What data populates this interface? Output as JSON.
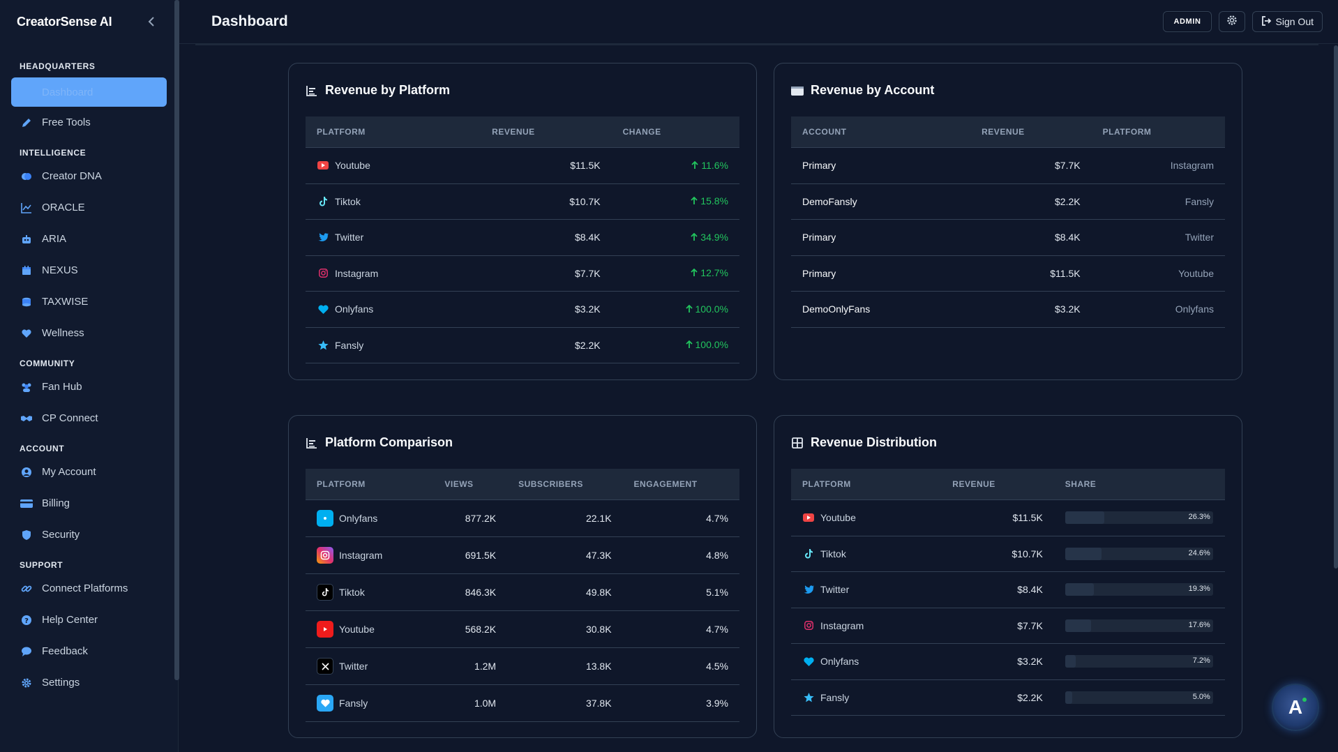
{
  "app": {
    "brand": "CreatorSense AI"
  },
  "header": {
    "title": "Dashboard",
    "admin_label": "ADMIN",
    "signout_label": "Sign Out"
  },
  "sidebar": {
    "sections": [
      {
        "label": "HEADQUARTERS"
      },
      {
        "label": "INTELLIGENCE"
      },
      {
        "label": "COMMUNITY"
      },
      {
        "label": "ACCOUNT"
      },
      {
        "label": "SUPPORT"
      }
    ],
    "active_item": "Dashboard",
    "items": [
      {
        "label": "Free Tools",
        "icon": "pencil-icon"
      },
      {
        "label": "Creator DNA",
        "icon": "brain-icon"
      },
      {
        "label": "ORACLE",
        "icon": "chart-line-icon"
      },
      {
        "label": "ARIA",
        "icon": "robot-icon"
      },
      {
        "label": "NEXUS",
        "icon": "calendar-icon"
      },
      {
        "label": "TAXWISE",
        "icon": "coins-icon"
      },
      {
        "label": "Wellness",
        "icon": "heart-icon"
      },
      {
        "label": "Fan Hub",
        "icon": "users-icon"
      },
      {
        "label": "CP Connect",
        "icon": "handshake-icon"
      },
      {
        "label": "My Account",
        "icon": "user-circle-icon"
      },
      {
        "label": "Billing",
        "icon": "credit-card-icon"
      },
      {
        "label": "Security",
        "icon": "shield-icon"
      },
      {
        "label": "Connect Platforms",
        "icon": "link-icon"
      },
      {
        "label": "Help Center",
        "icon": "question-icon"
      },
      {
        "label": "Feedback",
        "icon": "comment-icon"
      },
      {
        "label": "Settings",
        "icon": "gear-icon"
      }
    ]
  },
  "revenue_by_platform": {
    "title": "Revenue by Platform",
    "headers": [
      "PLATFORM",
      "REVENUE",
      "CHANGE"
    ],
    "rows": [
      {
        "platform": "Youtube",
        "revenue": "$11.5K",
        "change": "11.6%"
      },
      {
        "platform": "Tiktok",
        "revenue": "$10.7K",
        "change": "15.8%"
      },
      {
        "platform": "Twitter",
        "revenue": "$8.4K",
        "change": "34.9%"
      },
      {
        "platform": "Instagram",
        "revenue": "$7.7K",
        "change": "12.7%"
      },
      {
        "platform": "Onlyfans",
        "revenue": "$3.2K",
        "change": "100.0%"
      },
      {
        "platform": "Fansly",
        "revenue": "$2.2K",
        "change": "100.0%"
      }
    ]
  },
  "revenue_by_account": {
    "title": "Revenue by Account",
    "headers": [
      "ACCOUNT",
      "REVENUE",
      "PLATFORM"
    ],
    "rows": [
      {
        "account": "Primary",
        "revenue": "$7.7K",
        "platform": "Instagram"
      },
      {
        "account": "DemoFansly",
        "revenue": "$2.2K",
        "platform": "Fansly"
      },
      {
        "account": "Primary",
        "revenue": "$8.4K",
        "platform": "Twitter"
      },
      {
        "account": "Primary",
        "revenue": "$11.5K",
        "platform": "Youtube"
      },
      {
        "account": "DemoOnlyFans",
        "revenue": "$3.2K",
        "platform": "Onlyfans"
      }
    ]
  },
  "platform_comparison": {
    "title": "Platform Comparison",
    "headers": [
      "PLATFORM",
      "VIEWS",
      "SUBSCRIBERS",
      "ENGAGEMENT"
    ],
    "rows": [
      {
        "platform": "Onlyfans",
        "views": "877.2K",
        "subscribers": "22.1K",
        "engagement": "4.7%"
      },
      {
        "platform": "Instagram",
        "views": "691.5K",
        "subscribers": "47.3K",
        "engagement": "4.8%"
      },
      {
        "platform": "Tiktok",
        "views": "846.3K",
        "subscribers": "49.8K",
        "engagement": "5.1%"
      },
      {
        "platform": "Youtube",
        "views": "568.2K",
        "subscribers": "30.8K",
        "engagement": "4.7%"
      },
      {
        "platform": "Twitter",
        "views": "1.2M",
        "subscribers": "13.8K",
        "engagement": "4.5%"
      },
      {
        "platform": "Fansly",
        "views": "1.0M",
        "subscribers": "37.8K",
        "engagement": "3.9%"
      }
    ]
  },
  "revenue_distribution": {
    "title": "Revenue Distribution",
    "headers": [
      "PLATFORM",
      "REVENUE",
      "SHARE"
    ],
    "rows": [
      {
        "platform": "Youtube",
        "revenue": "$11.5K",
        "share": "26.3%",
        "share_value": 26.3
      },
      {
        "platform": "Tiktok",
        "revenue": "$10.7K",
        "share": "24.6%",
        "share_value": 24.6
      },
      {
        "platform": "Twitter",
        "revenue": "$8.4K",
        "share": "19.3%",
        "share_value": 19.3
      },
      {
        "platform": "Instagram",
        "revenue": "$7.7K",
        "share": "17.6%",
        "share_value": 17.6
      },
      {
        "platform": "Onlyfans",
        "revenue": "$3.2K",
        "share": "7.2%",
        "share_value": 7.2
      },
      {
        "platform": "Fansly",
        "revenue": "$2.2K",
        "share": "5.0%",
        "share_value": 5.0
      }
    ]
  },
  "colors": {
    "accent": "#60a5fa",
    "positive": "#22c55e",
    "youtube": "#ef4444",
    "tiktok": "#67e8f9",
    "twitter": "#1d9bf0",
    "instagram": "#e1306c",
    "onlyfans": "#00aff0",
    "fansly": "#38bdf8"
  },
  "assistant": {
    "label": "A"
  }
}
